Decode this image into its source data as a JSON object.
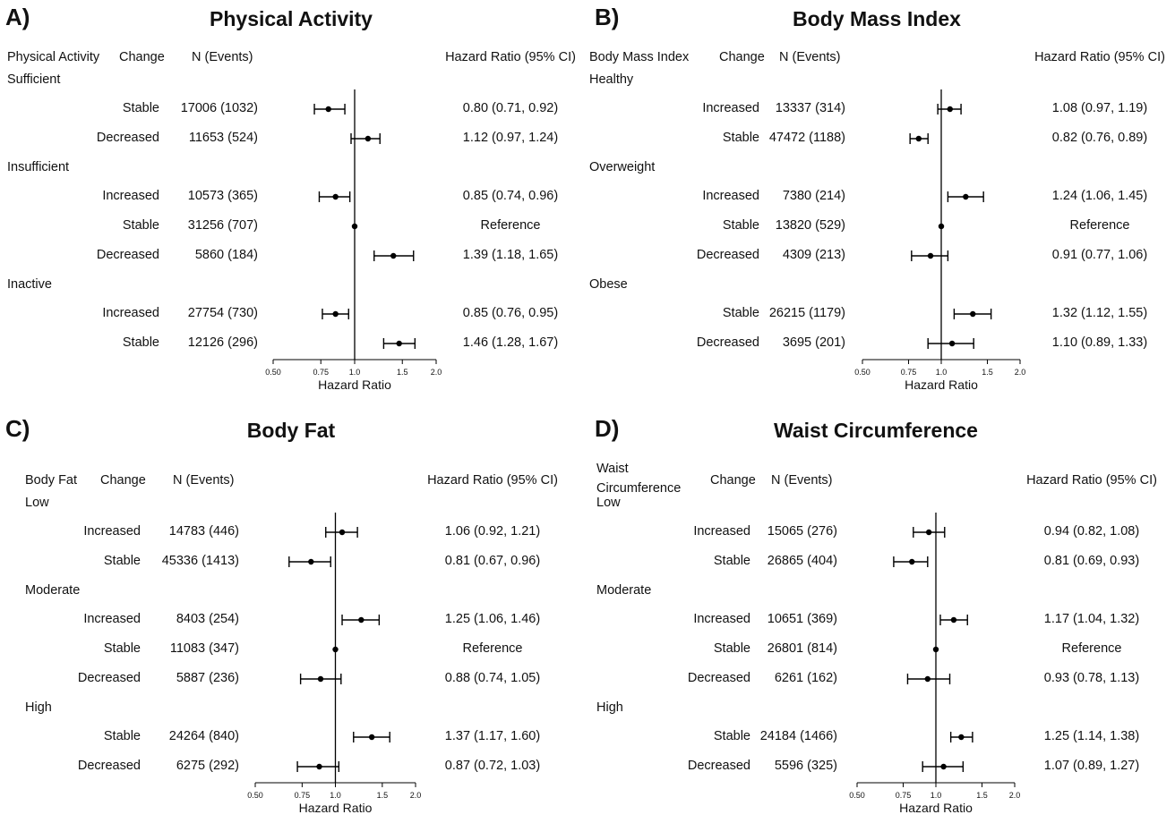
{
  "chart_data": [
    {
      "type": "forest",
      "panel_label": "A)",
      "title": "Physical Activity",
      "headers": {
        "group": "Physical Activity",
        "change": "Change",
        "n": "N (Events)",
        "hr": "Hazard Ratio (95% CI)"
      },
      "xlabel": "Hazard Ratio",
      "x_ticks": [
        "0.50",
        "0.75",
        "1.0",
        "1.5",
        "2.0"
      ],
      "x_tick_values": [
        0.5,
        0.75,
        1.0,
        1.5,
        2.0
      ],
      "xlim": [
        0.5,
        2.0
      ],
      "scale": "log",
      "reference_line": 1.0,
      "groups": [
        {
          "name": "Sufficient",
          "rows": [
            {
              "change": "Stable",
              "n": "17006 (1032)",
              "hr_text": "0.80 (0.71, 0.92)",
              "hr": 0.8,
              "lo": 0.71,
              "hi": 0.92
            },
            {
              "change": "Decreased",
              "n": "11653 (524)",
              "hr_text": "1.12 (0.97, 1.24)",
              "hr": 1.12,
              "lo": 0.97,
              "hi": 1.24
            }
          ]
        },
        {
          "name": "Insufficient",
          "rows": [
            {
              "change": "Increased",
              "n": "10573 (365)",
              "hr_text": "0.85 (0.74, 0.96)",
              "hr": 0.85,
              "lo": 0.74,
              "hi": 0.96
            },
            {
              "change": "Stable",
              "n": "31256 (707)",
              "hr_text": "Reference",
              "hr": 1.0,
              "lo": 1.0,
              "hi": 1.0
            },
            {
              "change": "Decreased",
              "n": "5860 (184)",
              "hr_text": "1.39 (1.18, 1.65)",
              "hr": 1.39,
              "lo": 1.18,
              "hi": 1.65
            }
          ]
        },
        {
          "name": "Inactive",
          "rows": [
            {
              "change": "Increased",
              "n": "27754 (730)",
              "hr_text": "0.85 (0.76, 0.95)",
              "hr": 0.85,
              "lo": 0.76,
              "hi": 0.95
            },
            {
              "change": "Stable",
              "n": "12126 (296)",
              "hr_text": "1.46 (1.28, 1.67)",
              "hr": 1.46,
              "lo": 1.28,
              "hi": 1.67
            }
          ]
        }
      ]
    },
    {
      "type": "forest",
      "panel_label": "B)",
      "title": "Body Mass Index",
      "headers": {
        "group": "Body Mass Index",
        "change": "Change",
        "n": "N (Events)",
        "hr": "Hazard Ratio (95% CI)"
      },
      "xlabel": "Hazard Ratio",
      "x_ticks": [
        "0.50",
        "0.75",
        "1.0",
        "1.5",
        "2.0"
      ],
      "x_tick_values": [
        0.5,
        0.75,
        1.0,
        1.5,
        2.0
      ],
      "xlim": [
        0.5,
        2.0
      ],
      "scale": "log",
      "reference_line": 1.0,
      "groups": [
        {
          "name": "Healthy",
          "rows": [
            {
              "change": "Increased",
              "n": "13337 (314)",
              "hr_text": "1.08 (0.97, 1.19)",
              "hr": 1.08,
              "lo": 0.97,
              "hi": 1.19
            },
            {
              "change": "Stable",
              "n": "47472 (1188)",
              "hr_text": "0.82 (0.76, 0.89)",
              "hr": 0.82,
              "lo": 0.76,
              "hi": 0.89
            }
          ]
        },
        {
          "name": "Overweight",
          "rows": [
            {
              "change": "Increased",
              "n": "7380 (214)",
              "hr_text": "1.24 (1.06, 1.45)",
              "hr": 1.24,
              "lo": 1.06,
              "hi": 1.45
            },
            {
              "change": "Stable",
              "n": "13820 (529)",
              "hr_text": "Reference",
              "hr": 1.0,
              "lo": 1.0,
              "hi": 1.0
            },
            {
              "change": "Decreased",
              "n": "4309 (213)",
              "hr_text": "0.91 (0.77, 1.06)",
              "hr": 0.91,
              "lo": 0.77,
              "hi": 1.06
            }
          ]
        },
        {
          "name": "Obese",
          "rows": [
            {
              "change": "Stable",
              "n": "26215 (1179)",
              "hr_text": "1.32 (1.12, 1.55)",
              "hr": 1.32,
              "lo": 1.12,
              "hi": 1.55
            },
            {
              "change": "Decreased",
              "n": "3695 (201)",
              "hr_text": "1.10 (0.89, 1.33)",
              "hr": 1.1,
              "lo": 0.89,
              "hi": 1.33
            }
          ]
        }
      ]
    },
    {
      "type": "forest",
      "panel_label": "C)",
      "title": "Body Fat",
      "headers": {
        "group": "Body Fat",
        "change": "Change",
        "n": "N (Events)",
        "hr": "Hazard Ratio (95% CI)"
      },
      "xlabel": "Hazard Ratio",
      "x_ticks": [
        "0.50",
        "0.75",
        "1.0",
        "1.5",
        "2.0"
      ],
      "x_tick_values": [
        0.5,
        0.75,
        1.0,
        1.5,
        2.0
      ],
      "xlim": [
        0.5,
        2.0
      ],
      "scale": "log",
      "reference_line": 1.0,
      "groups": [
        {
          "name": "Low",
          "rows": [
            {
              "change": "Increased",
              "n": "14783 (446)",
              "hr_text": "1.06 (0.92, 1.21)",
              "hr": 1.06,
              "lo": 0.92,
              "hi": 1.21
            },
            {
              "change": "Stable",
              "n": "45336 (1413)",
              "hr_text": "0.81 (0.67, 0.96)",
              "hr": 0.81,
              "lo": 0.67,
              "hi": 0.96
            }
          ]
        },
        {
          "name": "Moderate",
          "rows": [
            {
              "change": "Increased",
              "n": "8403 (254)",
              "hr_text": "1.25 (1.06, 1.46)",
              "hr": 1.25,
              "lo": 1.06,
              "hi": 1.46
            },
            {
              "change": "Stable",
              "n": "11083 (347)",
              "hr_text": "Reference",
              "hr": 1.0,
              "lo": 1.0,
              "hi": 1.0
            },
            {
              "change": "Decreased",
              "n": "5887 (236)",
              "hr_text": "0.88 (0.74, 1.05)",
              "hr": 0.88,
              "lo": 0.74,
              "hi": 1.05
            }
          ]
        },
        {
          "name": "High",
          "rows": [
            {
              "change": "Stable",
              "n": "24264 (840)",
              "hr_text": "1.37 (1.17, 1.60)",
              "hr": 1.37,
              "lo": 1.17,
              "hi": 1.6
            },
            {
              "change": "Decreased",
              "n": "6275 (292)",
              "hr_text": "0.87 (0.72, 1.03)",
              "hr": 0.87,
              "lo": 0.72,
              "hi": 1.03
            }
          ]
        }
      ]
    },
    {
      "type": "forest",
      "panel_label": "D)",
      "title": "Waist Circumference",
      "headers": {
        "group": "Waist\nCircumference",
        "change": "Change",
        "n": "N (Events)",
        "hr": "Hazard Ratio (95% CI)"
      },
      "xlabel": "Hazard Ratio",
      "x_ticks": [
        "0.50",
        "0.75",
        "1.0",
        "1.5",
        "2.0"
      ],
      "x_tick_values": [
        0.5,
        0.75,
        1.0,
        1.5,
        2.0
      ],
      "xlim": [
        0.5,
        2.0
      ],
      "scale": "log",
      "reference_line": 1.0,
      "groups": [
        {
          "name": "Low",
          "rows": [
            {
              "change": "Increased",
              "n": "15065 (276)",
              "hr_text": "0.94 (0.82, 1.08)",
              "hr": 0.94,
              "lo": 0.82,
              "hi": 1.08
            },
            {
              "change": "Stable",
              "n": "26865 (404)",
              "hr_text": "0.81 (0.69, 0.93)",
              "hr": 0.81,
              "lo": 0.69,
              "hi": 0.93
            }
          ]
        },
        {
          "name": "Moderate",
          "rows": [
            {
              "change": "Increased",
              "n": "10651 (369)",
              "hr_text": "1.17 (1.04, 1.32)",
              "hr": 1.17,
              "lo": 1.04,
              "hi": 1.32
            },
            {
              "change": "Stable",
              "n": "26801 (814)",
              "hr_text": "Reference",
              "hr": 1.0,
              "lo": 1.0,
              "hi": 1.0
            },
            {
              "change": "Decreased",
              "n": "6261 (162)",
              "hr_text": "0.93 (0.78, 1.13)",
              "hr": 0.93,
              "lo": 0.78,
              "hi": 1.13
            }
          ]
        },
        {
          "name": "High",
          "rows": [
            {
              "change": "Stable",
              "n": "24184 (1466)",
              "hr_text": "1.25 (1.14, 1.38)",
              "hr": 1.25,
              "lo": 1.14,
              "hi": 1.38
            },
            {
              "change": "Decreased",
              "n": "5596 (325)",
              "hr_text": "1.07 (0.89, 1.27)",
              "hr": 1.07,
              "lo": 0.89,
              "hi": 1.27
            }
          ]
        }
      ]
    }
  ]
}
